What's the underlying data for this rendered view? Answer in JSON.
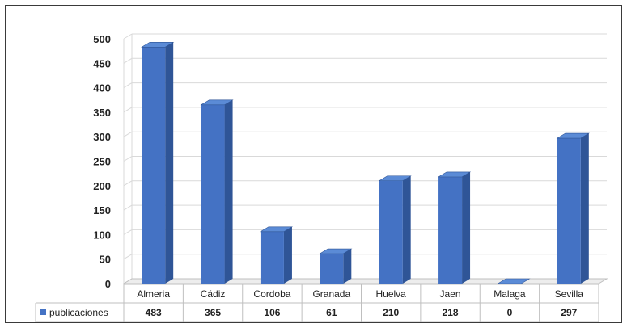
{
  "chart_data": {
    "type": "bar",
    "title": "",
    "xlabel": "",
    "ylabel": "",
    "categories": [
      "Almeria",
      "Cádiz",
      "Cordoba",
      "Granada",
      "Huelva",
      "Jaen",
      "Malaga",
      "Sevilla"
    ],
    "series": [
      {
        "name": "publicaciones",
        "values": [
          483,
          365,
          106,
          61,
          210,
          218,
          0,
          297
        ]
      }
    ],
    "ylim": [
      0,
      500
    ],
    "yticks": [
      0,
      50,
      100,
      150,
      200,
      250,
      300,
      350,
      400,
      450,
      500
    ],
    "grid": true,
    "legend": "data-table-left",
    "style": "3d-column",
    "colors": {
      "bar_front": "#4472C4",
      "bar_side": "#2F5597",
      "bar_top": "#5B8BD6",
      "grid": "#D9D9D9",
      "axis": "#BFBFBF",
      "border": "#3A3A3A"
    }
  }
}
